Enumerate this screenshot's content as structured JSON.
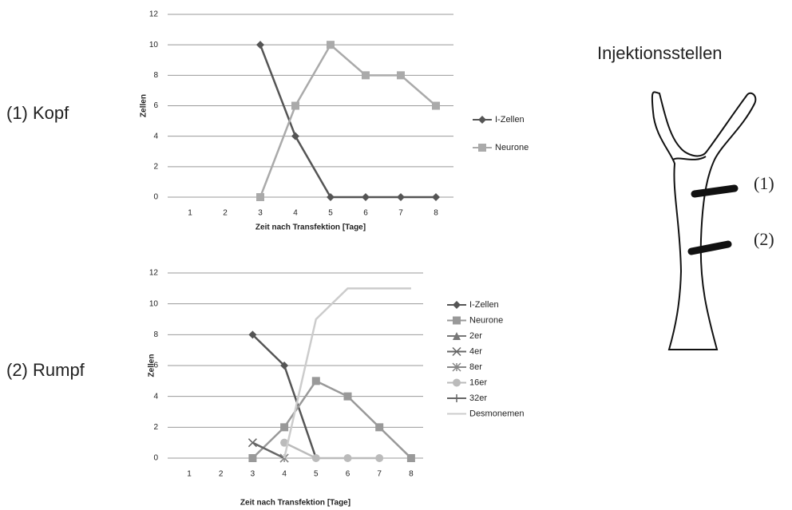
{
  "labels": {
    "head": "(1) Kopf",
    "trunk": "(2) Rumpf",
    "sites": "Injektionsstellen",
    "site1": "(1)",
    "site2": "(2)"
  },
  "chart_data": [
    {
      "type": "line",
      "categories": [
        "1",
        "2",
        "3",
        "4",
        "5",
        "6",
        "7",
        "8"
      ],
      "ylim": [
        0,
        12
      ],
      "yticks": [
        0,
        2,
        4,
        6,
        8,
        10,
        12
      ],
      "grid": true,
      "y_label": "Zellen",
      "x_label": "Zeit nach Transfektion [Tage]",
      "series": [
        {
          "name": "I-Zellen",
          "color": "#555555",
          "marker": "diamond",
          "values": [
            null,
            null,
            10,
            4,
            0,
            0,
            0,
            0
          ]
        },
        {
          "name": "Neurone",
          "color": "#aaaaaa",
          "marker": "square",
          "values": [
            null,
            null,
            0,
            6,
            10,
            8,
            8,
            6
          ]
        }
      ]
    },
    {
      "type": "line",
      "categories": [
        "1",
        "2",
        "3",
        "4",
        "5",
        "6",
        "7",
        "8"
      ],
      "ylim": [
        0,
        12
      ],
      "yticks": [
        0,
        2,
        4,
        6,
        8,
        10,
        12
      ],
      "grid": true,
      "y_label": "Zellen",
      "x_label": "Zeit nach Transfektion [Tage]",
      "series": [
        {
          "name": "I-Zellen",
          "color": "#555555",
          "marker": "diamond",
          "values": [
            null,
            null,
            8,
            6,
            0,
            null,
            null,
            null
          ]
        },
        {
          "name": "Neurone",
          "color": "#999999",
          "marker": "square",
          "values": [
            null,
            null,
            0,
            2,
            5,
            4,
            2,
            0
          ]
        },
        {
          "name": "2er",
          "color": "#777777",
          "marker": "triangle",
          "values": [
            null,
            null,
            null,
            null,
            null,
            null,
            null,
            null
          ]
        },
        {
          "name": "4er",
          "color": "#666666",
          "marker": "x",
          "values": [
            null,
            null,
            1,
            0,
            null,
            null,
            null,
            null
          ]
        },
        {
          "name": "8er",
          "color": "#888888",
          "marker": "star",
          "values": [
            null,
            null,
            null,
            0,
            null,
            null,
            null,
            null
          ]
        },
        {
          "name": "16er",
          "color": "#bbbbbb",
          "marker": "circle",
          "values": [
            null,
            null,
            null,
            1,
            0,
            0,
            0,
            null
          ]
        },
        {
          "name": "32er",
          "color": "#666666",
          "marker": "plus",
          "values": [
            null,
            null,
            null,
            null,
            null,
            null,
            null,
            null
          ]
        },
        {
          "name": "Desmonemen",
          "color": "#cccccc",
          "marker": "none",
          "values": [
            null,
            null,
            null,
            0,
            9,
            11,
            11,
            11
          ]
        }
      ]
    }
  ]
}
